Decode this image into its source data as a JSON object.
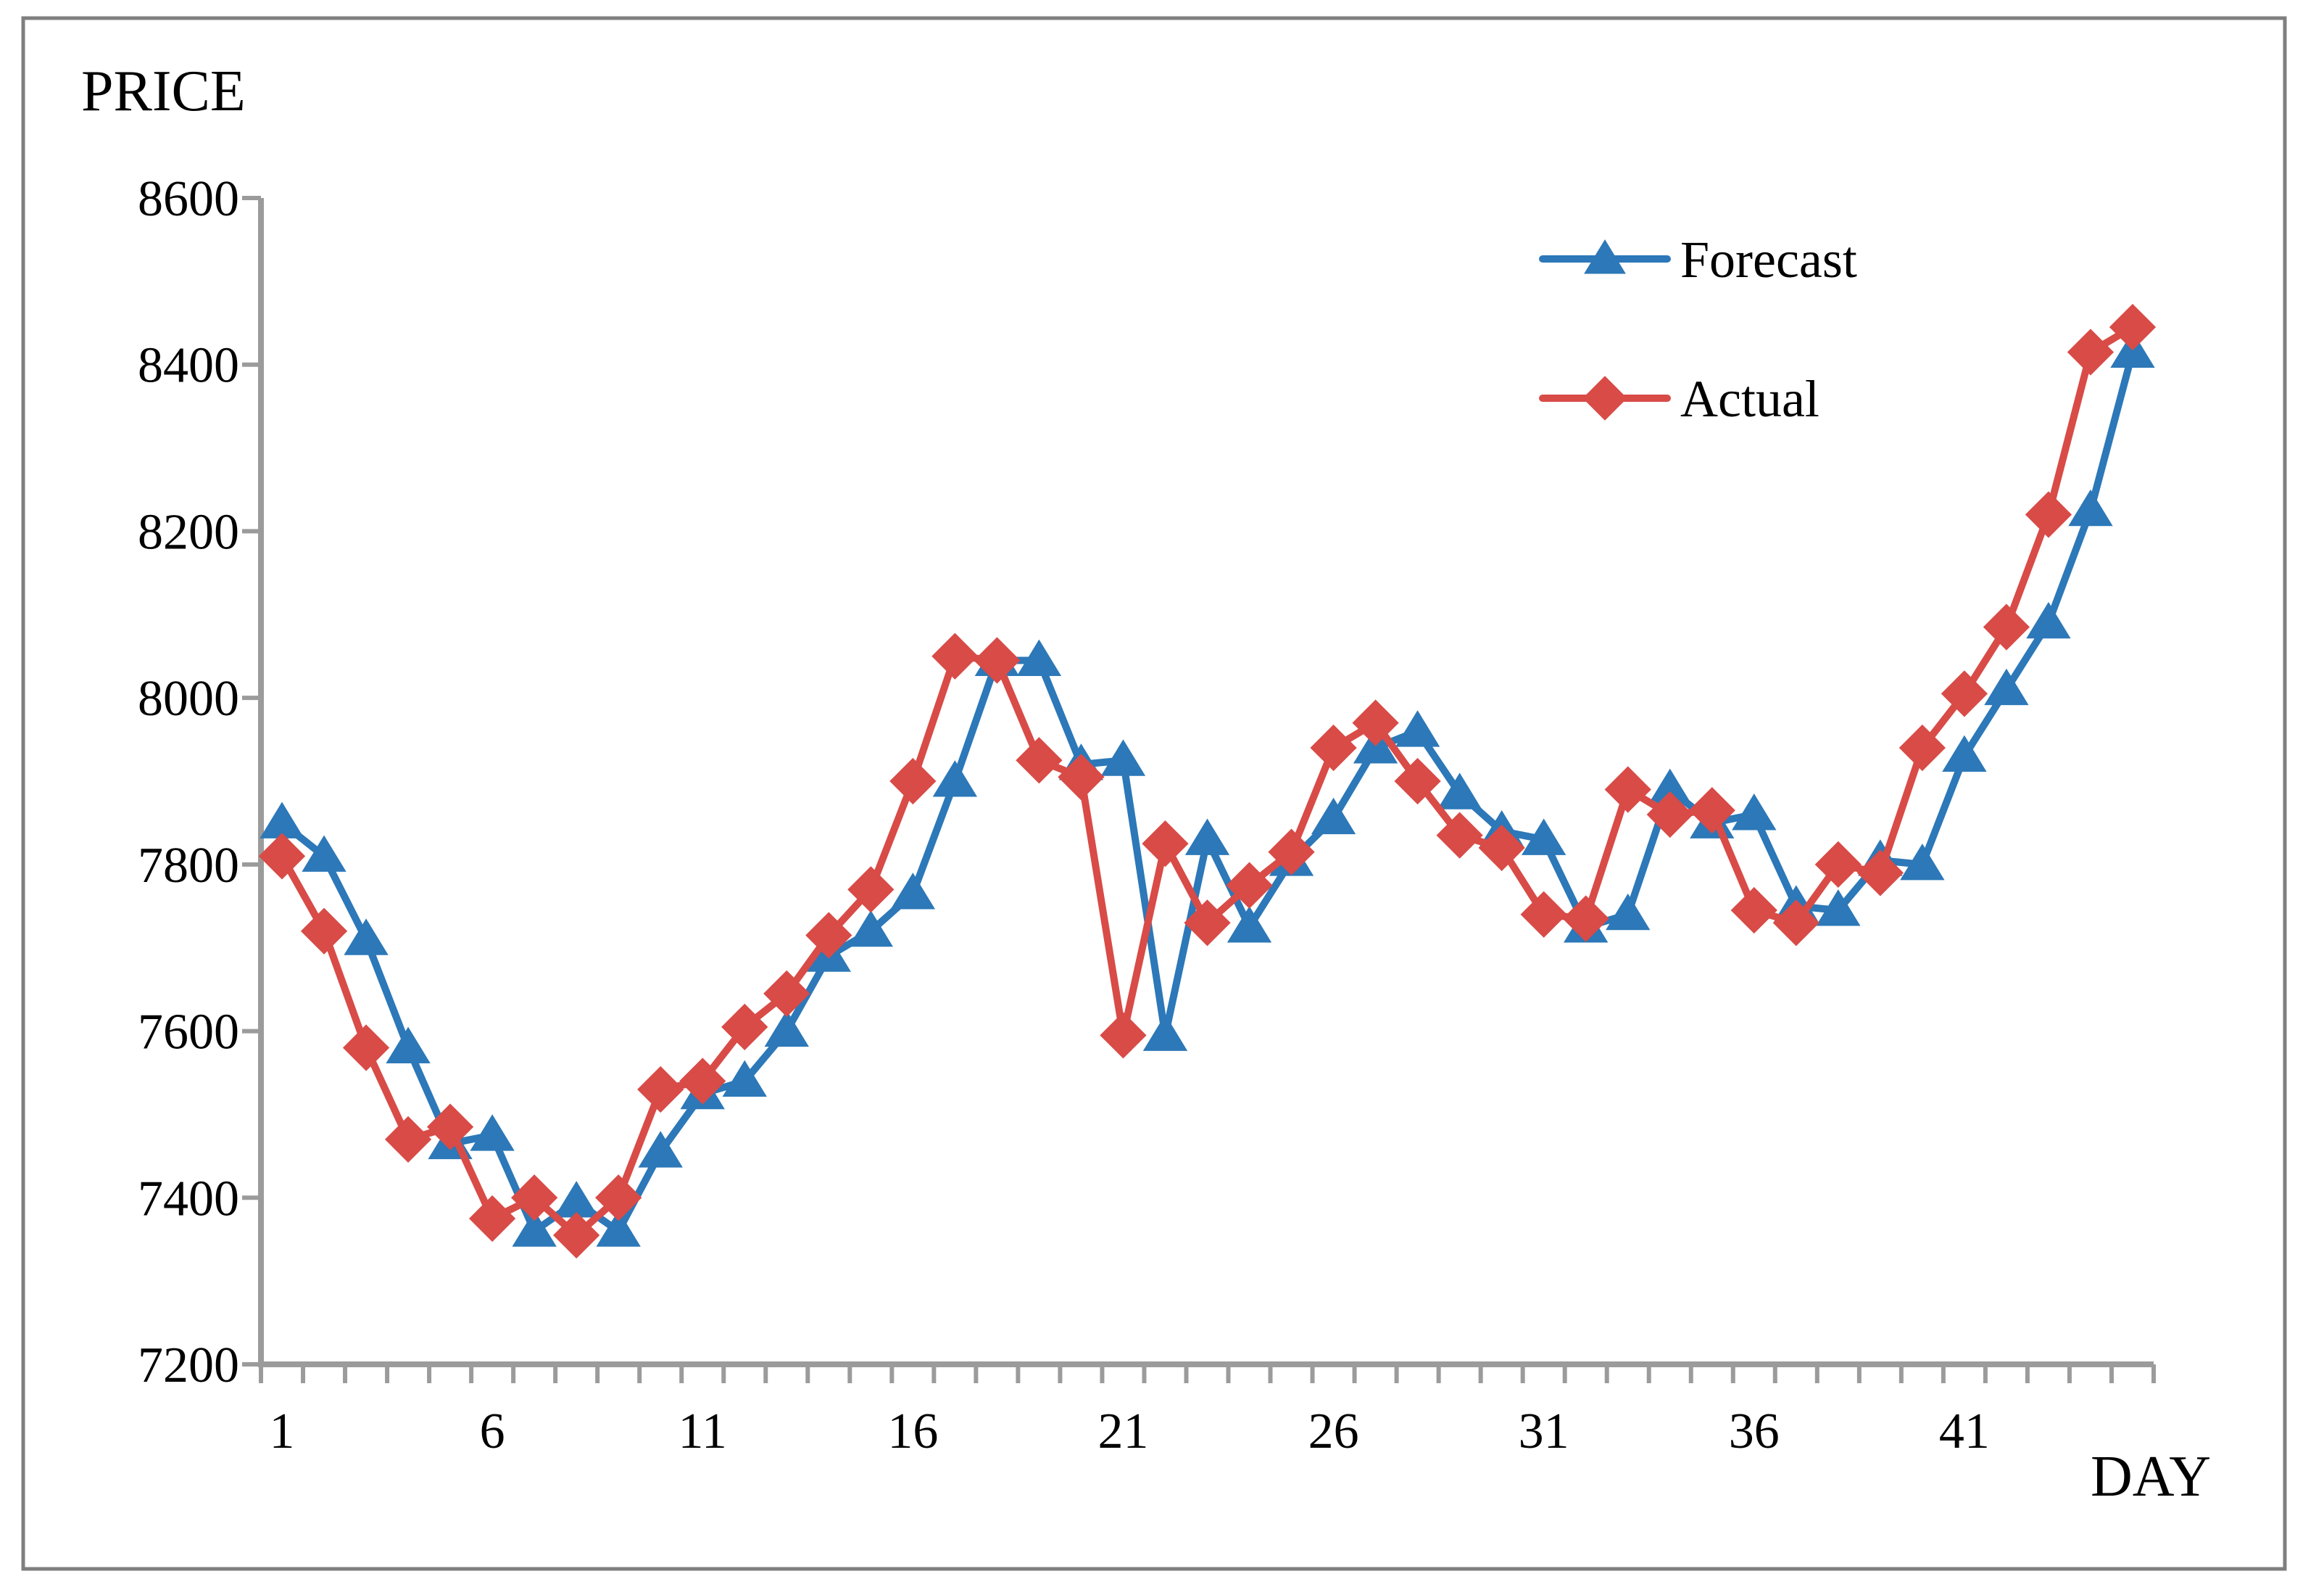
{
  "figure": {
    "y_axis_title": "PRICE",
    "x_axis_title": "DAY"
  },
  "legend": {
    "position": "top-center-right",
    "entries": [
      {
        "label": "Forecast",
        "marker": "triangle",
        "color": "#2C78B8"
      },
      {
        "label": "Actual",
        "marker": "diamond",
        "color": "#D84B47"
      }
    ]
  },
  "colors": {
    "forecast_line": "#2C78B8",
    "actual_line": "#D84B47",
    "axis": "#9B9B9B",
    "border": "#7F7F7F",
    "text": "#000000",
    "background": "#FFFFFF"
  },
  "chart_data": {
    "type": "line",
    "title": "",
    "xlabel": "DAY",
    "ylabel": "PRICE",
    "x": [
      1,
      2,
      3,
      4,
      5,
      6,
      7,
      8,
      9,
      10,
      11,
      12,
      13,
      14,
      15,
      16,
      17,
      18,
      19,
      20,
      21,
      22,
      23,
      24,
      25,
      26,
      27,
      28,
      29,
      30,
      31,
      32,
      33,
      34,
      35,
      36,
      37,
      38,
      39,
      40,
      41,
      42,
      43,
      44,
      45
    ],
    "xtick_labels": [
      "1",
      "6",
      "11",
      "16",
      "21",
      "26",
      "31",
      "36",
      "41"
    ],
    "xtick_values": [
      1,
      6,
      11,
      16,
      21,
      26,
      31,
      36,
      41
    ],
    "ylim": [
      7200,
      8600
    ],
    "ytick_step": 200,
    "ytick_labels": [
      "7200",
      "7400",
      "7600",
      "7800",
      "8000",
      "8200",
      "8400",
      "8600"
    ],
    "grid": false,
    "legend_position": "inside top right",
    "series": [
      {
        "name": "Forecast",
        "marker": "triangle",
        "color": "#2C78B8",
        "values": [
          7850,
          7810,
          7710,
          7580,
          7465,
          7475,
          7360,
          7395,
          7360,
          7455,
          7525,
          7540,
          7600,
          7690,
          7720,
          7765,
          7900,
          8045,
          8045,
          7920,
          7925,
          7595,
          7830,
          7725,
          7805,
          7855,
          7940,
          7960,
          7885,
          7840,
          7830,
          7725,
          7740,
          7890,
          7850,
          7860,
          7750,
          7745,
          7805,
          7800,
          7930,
          8010,
          8090,
          8225,
          8415
        ]
      },
      {
        "name": "Actual",
        "marker": "diamond",
        "color": "#D84B47",
        "values": [
          7810,
          7720,
          7580,
          7470,
          7485,
          7375,
          7400,
          7355,
          7400,
          7530,
          7540,
          7605,
          7645,
          7715,
          7770,
          7900,
          8050,
          8045,
          7925,
          7905,
          7595,
          7825,
          7730,
          7775,
          7815,
          7940,
          7970,
          7900,
          7835,
          7820,
          7740,
          7735,
          7890,
          7860,
          7865,
          7745,
          7730,
          7800,
          7790,
          7940,
          8005,
          8085,
          8220,
          8415,
          8445
        ]
      }
    ]
  }
}
